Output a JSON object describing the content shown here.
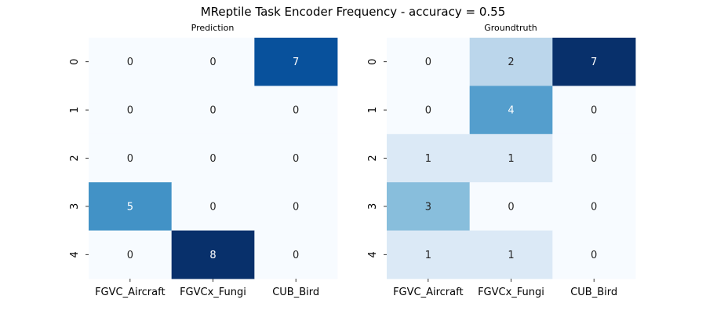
{
  "chart_data": {
    "title": "MReptile Task Encoder Frequency - accuracy = 0.55",
    "colormap": "Blues",
    "heatmaps": [
      {
        "type": "heatmap",
        "title": "Prediction",
        "rows": [
          "0",
          "1",
          "2",
          "3",
          "4"
        ],
        "columns": [
          "FGVC_Aircraft",
          "FGVCx_Fungi",
          "CUB_Bird"
        ],
        "values": [
          [
            0,
            0,
            7
          ],
          [
            0,
            0,
            0
          ],
          [
            0,
            0,
            0
          ],
          [
            5,
            0,
            0
          ],
          [
            0,
            8,
            0
          ]
        ],
        "vmin": 0,
        "vmax": 8
      },
      {
        "type": "heatmap",
        "title": "Groundtruth",
        "rows": [
          "0",
          "1",
          "2",
          "3",
          "4"
        ],
        "columns": [
          "FGVC_Aircraft",
          "FGVCx_Fungi",
          "CUB_Bird"
        ],
        "values": [
          [
            0,
            2,
            7
          ],
          [
            0,
            4,
            0
          ],
          [
            1,
            1,
            0
          ],
          [
            3,
            0,
            0
          ],
          [
            1,
            1,
            0
          ]
        ],
        "vmin": 0,
        "vmax": 7
      }
    ]
  }
}
